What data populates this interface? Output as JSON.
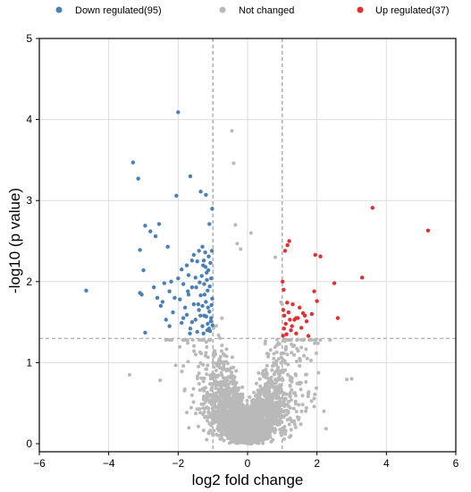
{
  "chart_data": {
    "type": "scatter",
    "title": "",
    "xlabel": "log2 fold change",
    "ylabel": "-log10 (p value)",
    "xlim": [
      -6,
      6
    ],
    "ylim": [
      0,
      5
    ],
    "x_ticks": [
      -6,
      -4,
      -2,
      0,
      2,
      4,
      6
    ],
    "y_ticks": [
      0,
      1,
      2,
      3,
      4,
      5
    ],
    "x_tick_labels": [
      "−6",
      "−4",
      "−2",
      "0",
      "2",
      "4",
      "6"
    ],
    "y_tick_labels": [
      "0",
      "1",
      "2",
      "3",
      "4",
      "5"
    ],
    "grid": true,
    "legend_position": "top",
    "thresholds": {
      "log2fc": [
        -1,
        1
      ],
      "neg_log10_p": 1.3
    },
    "series": [
      {
        "name": "Down regulated(95)",
        "color": "#4a80b8",
        "points": [
          [
            -4.65,
            1.89
          ],
          [
            -3.3,
            3.47
          ],
          [
            -3.15,
            3.27
          ],
          [
            -3.1,
            2.39
          ],
          [
            -3.1,
            1.86
          ],
          [
            -3.05,
            1.84
          ],
          [
            -3.0,
            2.14
          ],
          [
            -2.95,
            2.69
          ],
          [
            -2.95,
            1.37
          ],
          [
            -2.8,
            2.62
          ],
          [
            -2.7,
            1.93
          ],
          [
            -2.65,
            2.56
          ],
          [
            -2.6,
            1.8
          ],
          [
            -2.55,
            2.71
          ],
          [
            -2.5,
            1.7
          ],
          [
            -2.4,
            1.98
          ],
          [
            -2.35,
            1.53
          ],
          [
            -2.3,
            2.43
          ],
          [
            -2.25,
            1.88
          ],
          [
            -2.2,
            2.0
          ],
          [
            -2.15,
            1.62
          ],
          [
            -2.1,
            1.8
          ],
          [
            -2.05,
            3.06
          ],
          [
            -2.0,
            4.09
          ],
          [
            -2.0,
            2.04
          ],
          [
            -1.95,
            1.78
          ],
          [
            -1.9,
            1.49
          ],
          [
            -1.85,
            1.97
          ],
          [
            -1.8,
            1.68
          ],
          [
            -1.75,
            1.59
          ],
          [
            -1.7,
            1.84
          ],
          [
            -1.7,
            2.08
          ],
          [
            -1.65,
            3.3
          ],
          [
            -1.65,
            1.42
          ],
          [
            -1.6,
            1.93
          ],
          [
            -1.55,
            1.72
          ],
          [
            -1.5,
            1.53
          ],
          [
            -1.5,
            2.05
          ],
          [
            -1.45,
            2.25
          ],
          [
            -1.45,
            1.38
          ],
          [
            -1.4,
            2.38
          ],
          [
            -1.4,
            1.65
          ],
          [
            -1.35,
            1.83
          ],
          [
            -1.35,
            3.11
          ],
          [
            -1.3,
            2.43
          ],
          [
            -1.3,
            1.45
          ],
          [
            -1.28,
            2.2
          ],
          [
            -1.25,
            1.97
          ],
          [
            -1.25,
            1.58
          ],
          [
            -1.22,
            2.36
          ],
          [
            -1.2,
            1.75
          ],
          [
            -1.2,
            3.07
          ],
          [
            -1.18,
            2.11
          ],
          [
            -1.15,
            1.48
          ],
          [
            -1.15,
            1.89
          ],
          [
            -1.12,
            2.31
          ],
          [
            -1.1,
            1.63
          ],
          [
            -1.1,
            2.71
          ],
          [
            -1.08,
            1.39
          ],
          [
            -1.05,
            2.04
          ],
          [
            -1.05,
            1.55
          ],
          [
            -1.02,
            1.79
          ],
          [
            -1.02,
            2.9
          ],
          [
            -1.6,
            2.26
          ],
          [
            -1.6,
            1.5
          ],
          [
            -1.75,
            2.2
          ],
          [
            -1.85,
            1.55
          ],
          [
            -1.9,
            2.15
          ],
          [
            -2.45,
            1.75
          ],
          [
            -2.25,
            1.45
          ],
          [
            -1.55,
            2.33
          ],
          [
            -1.42,
            1.72
          ],
          [
            -1.38,
            1.99
          ],
          [
            -1.32,
            2.07
          ],
          [
            -1.3,
            1.7
          ],
          [
            -1.27,
            1.36
          ],
          [
            -1.24,
            1.84
          ],
          [
            -1.21,
            2.18
          ],
          [
            -1.19,
            1.57
          ],
          [
            -1.17,
            2.02
          ],
          [
            -1.14,
            1.68
          ],
          [
            -1.13,
            2.14
          ],
          [
            -1.11,
            1.42
          ],
          [
            -1.09,
            1.94
          ],
          [
            -1.07,
            2.23
          ],
          [
            -1.06,
            1.51
          ],
          [
            -1.04,
            1.71
          ],
          [
            -1.03,
            2.38
          ],
          [
            -1.01,
            1.46
          ],
          [
            -1.66,
            1.36
          ],
          [
            -1.72,
            1.88
          ],
          [
            -1.48,
            1.93
          ],
          [
            -1.36,
            1.58
          ],
          [
            -1.26,
            2.26
          ],
          [
            -1.16,
            1.4
          ]
        ]
      },
      {
        "name": "Not changed",
        "color": "#b9b9b9",
        "points": []
      },
      {
        "name": "Up regulated(37)",
        "color": "#e03030",
        "points": [
          [
            5.2,
            2.63
          ],
          [
            3.6,
            2.91
          ],
          [
            3.3,
            2.05
          ],
          [
            2.6,
            1.55
          ],
          [
            2.5,
            1.98
          ],
          [
            2.1,
            2.31
          ],
          [
            2.0,
            1.76
          ],
          [
            1.95,
            2.33
          ],
          [
            1.92,
            1.88
          ],
          [
            1.85,
            1.6
          ],
          [
            1.75,
            1.33
          ],
          [
            1.7,
            1.51
          ],
          [
            1.6,
            1.61
          ],
          [
            1.55,
            1.43
          ],
          [
            1.45,
            1.55
          ],
          [
            1.4,
            1.36
          ],
          [
            1.35,
            1.53
          ],
          [
            1.3,
            1.72
          ],
          [
            1.25,
            1.4
          ],
          [
            1.22,
            1.53
          ],
          [
            1.2,
            2.5
          ],
          [
            1.18,
            1.62
          ],
          [
            1.15,
            2.45
          ],
          [
            1.12,
            1.35
          ],
          [
            1.1,
            1.48
          ],
          [
            1.08,
            2.38
          ],
          [
            1.06,
            1.58
          ],
          [
            1.05,
            1.42
          ],
          [
            1.04,
            1.9
          ],
          [
            1.03,
            1.65
          ],
          [
            1.02,
            1.33
          ],
          [
            1.01,
            2.0
          ],
          [
            1.5,
            1.68
          ],
          [
            1.65,
            1.58
          ],
          [
            1.28,
            1.45
          ],
          [
            1.4,
            1.55
          ],
          [
            1.14,
            1.74
          ]
        ]
      }
    ]
  }
}
